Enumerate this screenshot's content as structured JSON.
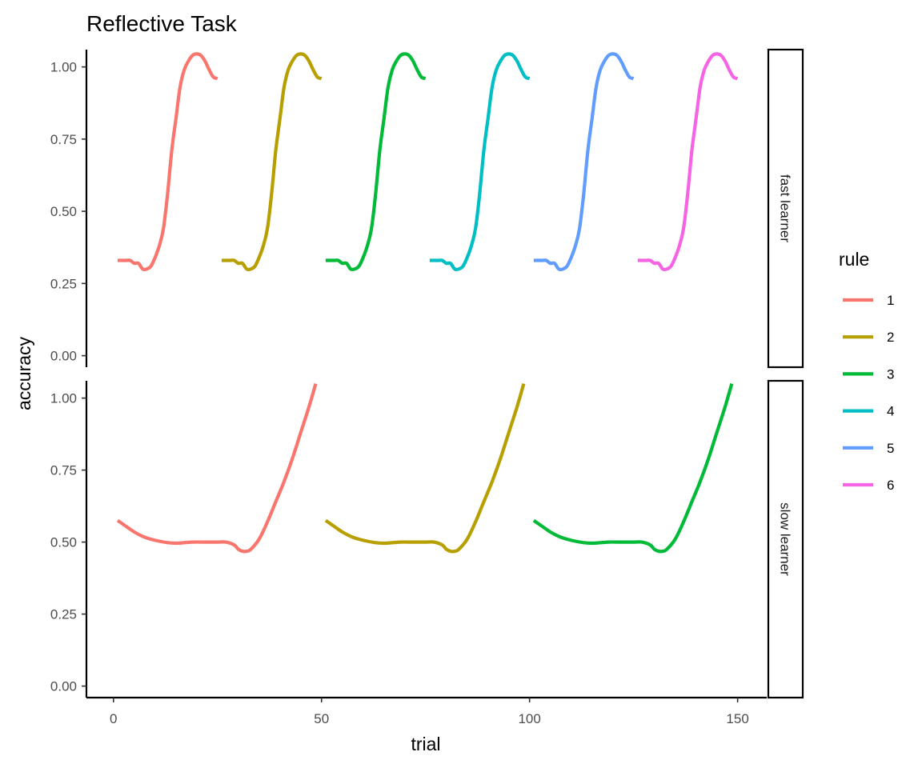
{
  "chart_data": {
    "type": "line",
    "title": "Reflective Task",
    "xlabel": "trial",
    "ylabel": "accuracy",
    "xlim": [
      -6.5,
      157
    ],
    "ylim": [
      -0.04,
      1.06
    ],
    "x_ticks": [
      0,
      50,
      100,
      150
    ],
    "x_tick_labels": [
      "0",
      "50",
      "100",
      "150"
    ],
    "y_ticks": [
      0,
      0.25,
      0.5,
      0.75,
      1.0
    ],
    "y_tick_labels": [
      "0.00",
      "0.25",
      "0.50",
      "0.75",
      "1.00"
    ],
    "grid": false,
    "legend": {
      "title": "rule",
      "position": "right",
      "entries": [
        {
          "label": "1",
          "color": "#F8766D"
        },
        {
          "label": "2",
          "color": "#B79F00"
        },
        {
          "label": "3",
          "color": "#00BA38"
        },
        {
          "label": "4",
          "color": "#00BFC4"
        },
        {
          "label": "5",
          "color": "#619CFF"
        },
        {
          "label": "6",
          "color": "#F564E3"
        }
      ]
    },
    "facets": [
      {
        "label": "fast learner",
        "series": [
          {
            "name": "1",
            "color": "#F8766D",
            "x": [
              1,
              2,
              3,
              4,
              5,
              6,
              7,
              8,
              9,
              10,
              11,
              12,
              13,
              14,
              15,
              16,
              17,
              18,
              19,
              20,
              21,
              22,
              23,
              24,
              25
            ],
            "y": [
              0.33,
              0.33,
              0.33,
              0.33,
              0.32,
              0.32,
              0.3,
              0.3,
              0.31,
              0.34,
              0.38,
              0.44,
              0.56,
              0.71,
              0.82,
              0.93,
              0.99,
              1.02,
              1.04,
              1.045,
              1.04,
              1.02,
              0.99,
              0.965,
              0.96
            ]
          },
          {
            "name": "2",
            "color": "#B79F00",
            "x": [
              26,
              27,
              28,
              29,
              30,
              31,
              32,
              33,
              34,
              35,
              36,
              37,
              38,
              39,
              40,
              41,
              42,
              43,
              44,
              45,
              46,
              47,
              48,
              49,
              50
            ],
            "y": [
              0.33,
              0.33,
              0.33,
              0.33,
              0.32,
              0.32,
              0.3,
              0.3,
              0.31,
              0.34,
              0.38,
              0.44,
              0.56,
              0.71,
              0.82,
              0.93,
              0.99,
              1.02,
              1.04,
              1.045,
              1.04,
              1.02,
              0.99,
              0.965,
              0.96
            ]
          },
          {
            "name": "3",
            "color": "#00BA38",
            "x": [
              51,
              52,
              53,
              54,
              55,
              56,
              57,
              58,
              59,
              60,
              61,
              62,
              63,
              64,
              65,
              66,
              67,
              68,
              69,
              70,
              71,
              72,
              73,
              74,
              75
            ],
            "y": [
              0.33,
              0.33,
              0.33,
              0.33,
              0.32,
              0.32,
              0.3,
              0.3,
              0.31,
              0.34,
              0.38,
              0.44,
              0.56,
              0.71,
              0.82,
              0.93,
              0.99,
              1.02,
              1.04,
              1.045,
              1.04,
              1.02,
              0.99,
              0.965,
              0.96
            ]
          },
          {
            "name": "4",
            "color": "#00BFC4",
            "x": [
              76,
              77,
              78,
              79,
              80,
              81,
              82,
              83,
              84,
              85,
              86,
              87,
              88,
              89,
              90,
              91,
              92,
              93,
              94,
              95,
              96,
              97,
              98,
              99,
              100
            ],
            "y": [
              0.33,
              0.33,
              0.33,
              0.33,
              0.32,
              0.32,
              0.3,
              0.3,
              0.31,
              0.34,
              0.38,
              0.44,
              0.56,
              0.71,
              0.82,
              0.93,
              0.99,
              1.02,
              1.04,
              1.045,
              1.04,
              1.02,
              0.99,
              0.965,
              0.96
            ]
          },
          {
            "name": "5",
            "color": "#619CFF",
            "x": [
              101,
              102,
              103,
              104,
              105,
              106,
              107,
              108,
              109,
              110,
              111,
              112,
              113,
              114,
              115,
              116,
              117,
              118,
              119,
              120,
              121,
              122,
              123,
              124,
              125
            ],
            "y": [
              0.33,
              0.33,
              0.33,
              0.33,
              0.32,
              0.32,
              0.3,
              0.3,
              0.31,
              0.34,
              0.38,
              0.44,
              0.56,
              0.71,
              0.82,
              0.93,
              0.99,
              1.02,
              1.04,
              1.045,
              1.04,
              1.02,
              0.99,
              0.965,
              0.96
            ]
          },
          {
            "name": "6",
            "color": "#F564E3",
            "x": [
              126,
              127,
              128,
              129,
              130,
              131,
              132,
              133,
              134,
              135,
              136,
              137,
              138,
              139,
              140,
              141,
              142,
              143,
              144,
              145,
              146,
              147,
              148,
              149,
              150
            ],
            "y": [
              0.33,
              0.33,
              0.33,
              0.33,
              0.32,
              0.32,
              0.3,
              0.3,
              0.31,
              0.34,
              0.38,
              0.44,
              0.56,
              0.71,
              0.82,
              0.93,
              0.99,
              1.02,
              1.04,
              1.045,
              1.04,
              1.02,
              0.99,
              0.965,
              0.96
            ]
          }
        ]
      },
      {
        "label": "slow learner",
        "series": [
          {
            "name": "1",
            "color": "#F8766D",
            "x": [
              1,
              3,
              5,
              7,
              9,
              11,
              13,
              15,
              17,
              19,
              21,
              23,
              25,
              27,
              29,
              30,
              31,
              32,
              33,
              35,
              37,
              39,
              41,
              43,
              45,
              47,
              48.6
            ],
            "y": [
              0.575,
              0.555,
              0.535,
              0.52,
              0.51,
              0.503,
              0.498,
              0.496,
              0.498,
              0.5,
              0.5,
              0.5,
              0.5,
              0.5,
              0.49,
              0.475,
              0.468,
              0.468,
              0.475,
              0.51,
              0.57,
              0.64,
              0.71,
              0.79,
              0.88,
              0.97,
              1.05
            ]
          },
          {
            "name": "2",
            "color": "#B79F00",
            "x": [
              51,
              53,
              55,
              57,
              59,
              61,
              63,
              65,
              67,
              69,
              71,
              73,
              75,
              77,
              79,
              80,
              81,
              82,
              83,
              85,
              87,
              89,
              91,
              93,
              95,
              97,
              98.6
            ],
            "y": [
              0.575,
              0.555,
              0.535,
              0.52,
              0.51,
              0.503,
              0.498,
              0.496,
              0.498,
              0.5,
              0.5,
              0.5,
              0.5,
              0.5,
              0.49,
              0.475,
              0.468,
              0.468,
              0.475,
              0.51,
              0.57,
              0.64,
              0.71,
              0.79,
              0.88,
              0.97,
              1.05
            ]
          },
          {
            "name": "3",
            "color": "#00BA38",
            "x": [
              101,
              103,
              105,
              107,
              109,
              111,
              113,
              115,
              117,
              119,
              121,
              123,
              125,
              127,
              129,
              130,
              131,
              132,
              133,
              135,
              137,
              139,
              141,
              143,
              145,
              147,
              148.6
            ],
            "y": [
              0.575,
              0.555,
              0.535,
              0.52,
              0.51,
              0.503,
              0.498,
              0.496,
              0.498,
              0.5,
              0.5,
              0.5,
              0.5,
              0.5,
              0.49,
              0.475,
              0.468,
              0.468,
              0.475,
              0.51,
              0.57,
              0.64,
              0.71,
              0.79,
              0.88,
              0.97,
              1.05
            ]
          }
        ]
      }
    ]
  }
}
